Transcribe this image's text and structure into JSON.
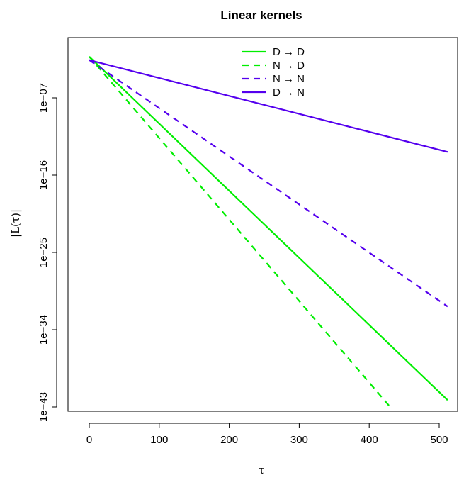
{
  "chart_data": {
    "type": "line",
    "title": "Linear kernels",
    "xlabel": "τ",
    "ylabel": "|L(τ)|",
    "x_ticks": [
      0,
      100,
      200,
      300,
      400,
      500
    ],
    "x_tick_labels": [
      "0",
      "100",
      "200",
      "300",
      "400",
      "500"
    ],
    "xlim": [
      0,
      512
    ],
    "y_scale": "log10",
    "y_ticks_log10": [
      -7,
      -16,
      -25,
      -34,
      -43
    ],
    "y_tick_labels": [
      "1e−07",
      "1e−16",
      "1e−25",
      "1e−34",
      "1e−43"
    ],
    "ylim_log10": [
      -43,
      -2.5
    ],
    "grid": false,
    "legend_position": "top",
    "series": [
      {
        "name": "D → D",
        "color": "#00EE00",
        "dash": "solid",
        "x": [
          0,
          512
        ],
        "log10_y": [
          -2.2,
          -42.2
        ]
      },
      {
        "name": "N → D",
        "color": "#00EE00",
        "dash": "dashed",
        "x": [
          0,
          430
        ],
        "log10_y": [
          -2.2,
          -43.0
        ]
      },
      {
        "name": "N → N",
        "color": "#5500EE",
        "dash": "dashed",
        "x": [
          0,
          512
        ],
        "log10_y": [
          -2.6,
          -31.3
        ]
      },
      {
        "name": "D → N",
        "color": "#5500EE",
        "dash": "solid",
        "x": [
          0,
          512
        ],
        "log10_y": [
          -2.6,
          -13.3
        ]
      }
    ]
  }
}
